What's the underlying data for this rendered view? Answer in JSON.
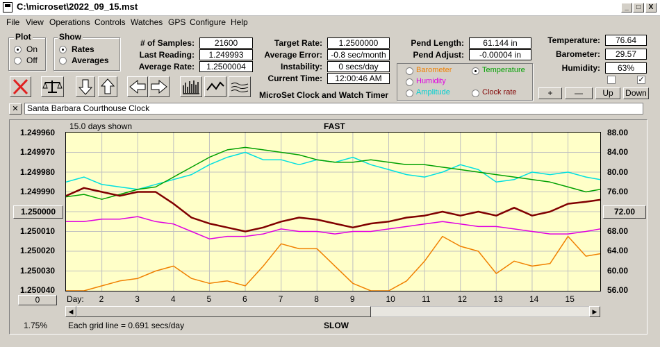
{
  "window": {
    "title": "C:\\microset\\2022_09_15.mst",
    "minimize": "_",
    "maximize": "□",
    "close": "X"
  },
  "menu": [
    "File",
    "View",
    "Operations",
    "Controls",
    "Watches",
    "GPS",
    "Configure",
    "Help"
  ],
  "plot_group": {
    "title": "Plot",
    "on": "On",
    "off": "Off"
  },
  "show_group": {
    "title": "Show",
    "rates": "Rates",
    "averages": "Averages"
  },
  "stats1": {
    "samples_label": "# of Samples:",
    "samples": "21600",
    "last_label": "Last Reading:",
    "last": "1.249993",
    "avg_label": "Average Rate:",
    "avg": "1.2500004"
  },
  "stats2": {
    "target_label": "Target Rate:",
    "target": "1.2500000",
    "avgerr_label": "Average Error:",
    "avgerr": "-0.8 sec/month",
    "instab_label": "Instability:",
    "instab": "0 secs/day",
    "time_label": "Current Time:",
    "time": "12:00:46 AM"
  },
  "app_name": "MicroSet Clock and Watch Timer",
  "pend": {
    "length_label": "Pend Length:",
    "length": "61.144 in",
    "adjust_label": "Pend Adjust:",
    "adjust": "-0.00004 in"
  },
  "series_select": {
    "barometer": "Barometer",
    "temperature": "Temperature",
    "humidity": "Humidity",
    "amplitude": "Amplitude",
    "clockrate": "Clock rate"
  },
  "env": {
    "temp_label": "Temperature:",
    "temp": "76.64",
    "baro_label": "Barometer:",
    "baro": "29.57",
    "hum_label": "Humidity:",
    "hum": "63%"
  },
  "adjust_buttons": {
    "plus": "+",
    "minus": "—",
    "up": "Up",
    "down": "Down"
  },
  "checkbox_mark": "✓",
  "clock_name": "Santa Barbara Courthouse Clock",
  "close_x": "✕",
  "chart": {
    "days_shown": "15.0 days shown",
    "fast": "FAST",
    "slow": "SLOW",
    "grid_note": "Each grid line = 0.691 secs/day",
    "left_ticks": [
      "1.249960",
      "1.249970",
      "1.249980",
      "1.249990",
      "1.250000",
      "1.250010",
      "1.250020",
      "1.250030",
      "1.250040"
    ],
    "right_ticks": [
      "88.00",
      "84.00",
      "80.00",
      "76.00",
      "72.00",
      "68.00",
      "64.00",
      "60.00",
      "56.00"
    ],
    "day_label": "Day:",
    "days": [
      "2",
      "3",
      "4",
      "5",
      "6",
      "7",
      "8",
      "9",
      "10",
      "11",
      "12",
      "13",
      "14",
      "15"
    ],
    "zero_button": "0",
    "percent": "1.75%",
    "colors": {
      "clockrate": "#800000",
      "temperature": "#00a000",
      "amplitude": "#00e0e0",
      "humidity": "#e000e0",
      "barometer": "#f08000",
      "plot_bg": "#ffffc8"
    }
  },
  "chart_data": {
    "type": "line",
    "x_range_days": [
      1,
      15.9
    ],
    "series": [
      {
        "name": "Clock rate",
        "axis": "left",
        "x": [
          1,
          1.5,
          2,
          2.5,
          3,
          3.5,
          4,
          4.5,
          5,
          5.5,
          6,
          6.5,
          7,
          7.5,
          8,
          8.5,
          9,
          9.5,
          10,
          10.5,
          11,
          11.5,
          12,
          12.5,
          13,
          13.5,
          14,
          14.5,
          15,
          15.5,
          15.9
        ],
        "y": [
          1.249992,
          1.249988,
          1.24999,
          1.249992,
          1.24999,
          1.24999,
          1.249996,
          1.250003,
          1.250006,
          1.250008,
          1.25001,
          1.250008,
          1.250005,
          1.250003,
          1.250004,
          1.250006,
          1.250008,
          1.250006,
          1.250005,
          1.250003,
          1.250002,
          1.25,
          1.250002,
          1.25,
          1.250002,
          1.249998,
          1.250002,
          1.25,
          1.249996,
          1.249995,
          1.249994
        ]
      },
      {
        "name": "Temperature",
        "axis": "right",
        "x": [
          1,
          1.5,
          2,
          2.5,
          3,
          3.5,
          4,
          4.5,
          5,
          5.5,
          6,
          6.5,
          7,
          7.5,
          8,
          8.5,
          9,
          9.5,
          10,
          10.5,
          11,
          11.5,
          12,
          12.5,
          13,
          13.5,
          14,
          14.5,
          15,
          15.5,
          15.9
        ],
        "y": [
          75.0,
          75.5,
          74.5,
          75.5,
          76.5,
          77.0,
          79.0,
          81.0,
          83.0,
          84.5,
          85.0,
          84.5,
          84.0,
          83.5,
          82.5,
          82.0,
          82.0,
          82.5,
          82.0,
          81.5,
          81.5,
          81.0,
          80.5,
          80.0,
          79.5,
          79.0,
          78.5,
          78.0,
          77.0,
          76.0,
          76.5
        ]
      },
      {
        "name": "Amplitude",
        "axis": "right",
        "x": [
          1,
          1.5,
          2,
          2.5,
          3,
          3.5,
          4,
          4.5,
          5,
          5.5,
          6,
          6.5,
          7,
          7.5,
          8,
          8.5,
          9,
          9.5,
          10,
          10.5,
          11,
          11.5,
          12,
          12.5,
          13,
          13.5,
          14,
          14.5,
          15,
          15.5,
          15.9
        ],
        "y": [
          78.0,
          79.0,
          77.5,
          77.0,
          76.5,
          77.5,
          78.5,
          79.5,
          81.5,
          83.0,
          84.0,
          82.5,
          82.5,
          81.5,
          82.5,
          82.0,
          83.0,
          81.5,
          80.5,
          79.5,
          79.0,
          80.0,
          81.5,
          80.5,
          78.0,
          78.5,
          80.0,
          79.5,
          80.0,
          79.0,
          78.5
        ]
      },
      {
        "name": "Humidity",
        "axis": "right",
        "x": [
          1,
          1.5,
          2,
          2.5,
          3,
          3.5,
          4,
          4.5,
          5,
          5.5,
          6,
          6.5,
          7,
          7.5,
          8,
          8.5,
          9,
          9.5,
          10,
          10.5,
          11,
          11.5,
          12,
          12.5,
          13,
          13.5,
          14,
          14.5,
          15,
          15.5,
          15.9
        ],
        "y": [
          70.0,
          70.0,
          70.5,
          70.5,
          71.0,
          70.0,
          69.5,
          68.0,
          66.5,
          67.0,
          67.0,
          67.5,
          68.5,
          68.0,
          68.0,
          67.5,
          68.0,
          68.0,
          68.5,
          69.0,
          69.5,
          70.0,
          69.5,
          69.0,
          69.0,
          68.5,
          68.0,
          67.5,
          67.5,
          68.0,
          68.5
        ]
      },
      {
        "name": "Barometer",
        "axis": "right",
        "x": [
          1,
          1.5,
          2,
          2.5,
          3,
          3.5,
          4,
          4.5,
          5,
          5.5,
          6,
          6.5,
          7,
          7.5,
          8,
          8.5,
          9,
          9.5,
          10,
          10.5,
          11,
          11.5,
          12,
          12.5,
          13,
          13.5,
          14,
          14.5,
          15,
          15.5,
          15.9
        ],
        "y": [
          56.0,
          56.0,
          57.0,
          58.0,
          58.5,
          60.0,
          61.0,
          58.5,
          57.5,
          58.0,
          57.0,
          61.0,
          65.5,
          64.5,
          64.5,
          61.0,
          57.5,
          56.0,
          56.0,
          58.0,
          62.0,
          67.0,
          65.0,
          64.0,
          59.5,
          62.0,
          61.0,
          61.5,
          67.0,
          63.0,
          63.5
        ]
      }
    ]
  }
}
